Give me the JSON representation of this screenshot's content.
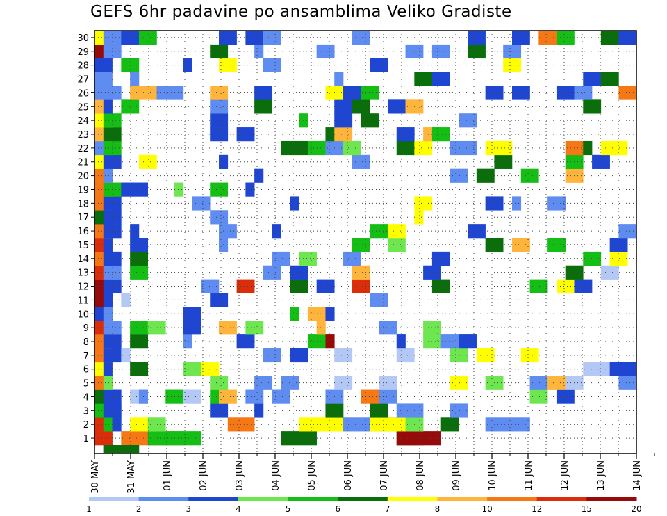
{
  "chart_data": {
    "type": "heatmap",
    "title": "GEFS 6hr padavine po ansamblima Veliko Gradiste",
    "xlabel": "",
    "ylabel": "",
    "x_tick_labels": [
      "30 MAY",
      "31 MAY",
      "01 JUN",
      "02 JUN",
      "03 JUN",
      "04 JUN",
      "05 JUN",
      "06 JUN",
      "07 JUN",
      "08 JUN",
      "09 JUN",
      "10 JUN",
      "11 JUN",
      "12 JUN",
      "13 JUN",
      "14 JUN"
    ],
    "y_tick_labels": [
      "1",
      "2",
      "3",
      "4",
      "5",
      "6",
      "7",
      "8",
      "9",
      "10",
      "11",
      "12",
      "13",
      "14",
      "15",
      "16",
      "17",
      "18",
      "19",
      "20",
      "21",
      "22",
      "23",
      "24",
      "25",
      "26",
      "27",
      "28",
      "29",
      "30"
    ],
    "members": 30,
    "time_steps": 61,
    "time_step_hours": 6,
    "grid": true,
    "colorbar": {
      "position": "bottom",
      "labels": [
        "1",
        "2",
        "3",
        "4",
        "5",
        "6",
        "7",
        "8",
        "10",
        "12",
        "15",
        "20"
      ],
      "colors": [
        "#b4c8f5",
        "#5f8cf0",
        "#1e46d2",
        "#6ee650",
        "#14be14",
        "#0a6e0a",
        "#ffff00",
        "#ffb43c",
        "#f57814",
        "#dc2d0a",
        "#960a0a"
      ]
    },
    "cells": [
      [
        1,
        0,
        2,
        10
      ],
      [
        1,
        3,
        7,
        9
      ],
      [
        1,
        6,
        6,
        5
      ],
      [
        1,
        21,
        1,
        7
      ],
      [
        1,
        21,
        4,
        6
      ],
      [
        1,
        34,
        3,
        6
      ],
      [
        1,
        34,
        5,
        11
      ],
      [
        2,
        0,
        2,
        10
      ],
      [
        2,
        1,
        1,
        5
      ],
      [
        2,
        2,
        1,
        3
      ],
      [
        2,
        4,
        3,
        7
      ],
      [
        2,
        6,
        2,
        4
      ],
      [
        2,
        15,
        3,
        9
      ],
      [
        2,
        23,
        6,
        7
      ],
      [
        2,
        28,
        6,
        2
      ],
      [
        2,
        31,
        6,
        7
      ],
      [
        2,
        35,
        2,
        4
      ],
      [
        2,
        39,
        2,
        6
      ],
      [
        2,
        44,
        5,
        2
      ],
      [
        3,
        0,
        3,
        5
      ],
      [
        3,
        1,
        2,
        3
      ],
      [
        3,
        13,
        2,
        3
      ],
      [
        3,
        18,
        1,
        3
      ],
      [
        3,
        26,
        2,
        6
      ],
      [
        3,
        31,
        2,
        6
      ],
      [
        3,
        34,
        3,
        2
      ],
      [
        3,
        40,
        2,
        2
      ],
      [
        4,
        0,
        2,
        6
      ],
      [
        4,
        1,
        2,
        3
      ],
      [
        4,
        4,
        2,
        1
      ],
      [
        4,
        5,
        1,
        2
      ],
      [
        4,
        8,
        2,
        5
      ],
      [
        4,
        10,
        2,
        1
      ],
      [
        4,
        13,
        2,
        5
      ],
      [
        4,
        14,
        2,
        8
      ],
      [
        4,
        17,
        2,
        2
      ],
      [
        4,
        20,
        2,
        2
      ],
      [
        4,
        26,
        2,
        2
      ],
      [
        4,
        30,
        2,
        9
      ],
      [
        4,
        32,
        2,
        2
      ],
      [
        4,
        49,
        2,
        4
      ],
      [
        4,
        52,
        2,
        3
      ],
      [
        5,
        0,
        2,
        9
      ],
      [
        5,
        1,
        1,
        4
      ],
      [
        5,
        13,
        2,
        4
      ],
      [
        5,
        18,
        2,
        2
      ],
      [
        5,
        21,
        2,
        2
      ],
      [
        5,
        27,
        2,
        1
      ],
      [
        5,
        32,
        2,
        1
      ],
      [
        5,
        40,
        2,
        7
      ],
      [
        5,
        44,
        2,
        4
      ],
      [
        5,
        49,
        2,
        2
      ],
      [
        5,
        51,
        2,
        8
      ],
      [
        5,
        53,
        2,
        1
      ],
      [
        5,
        59,
        2,
        2
      ],
      [
        6,
        0,
        2,
        7
      ],
      [
        6,
        1,
        1,
        3
      ],
      [
        6,
        4,
        2,
        6
      ],
      [
        6,
        10,
        2,
        4
      ],
      [
        6,
        12,
        2,
        7
      ],
      [
        6,
        55,
        3,
        1
      ],
      [
        6,
        58,
        3,
        3
      ],
      [
        7,
        0,
        2,
        9
      ],
      [
        7,
        1,
        2,
        3
      ],
      [
        7,
        3,
        1,
        1
      ],
      [
        7,
        19,
        2,
        2
      ],
      [
        7,
        22,
        2,
        3
      ],
      [
        7,
        27,
        2,
        1
      ],
      [
        7,
        34,
        2,
        1
      ],
      [
        7,
        40,
        2,
        4
      ],
      [
        7,
        43,
        2,
        7
      ],
      [
        7,
        48,
        2,
        7
      ],
      [
        8,
        0,
        2,
        9
      ],
      [
        8,
        1,
        2,
        3
      ],
      [
        8,
        4,
        2,
        6
      ],
      [
        8,
        10,
        1,
        2
      ],
      [
        8,
        16,
        2,
        3
      ],
      [
        8,
        24,
        2,
        5
      ],
      [
        8,
        26,
        1,
        11
      ],
      [
        8,
        34,
        1,
        3
      ],
      [
        8,
        37,
        2,
        4
      ],
      [
        8,
        39,
        2,
        2
      ],
      [
        8,
        41,
        2,
        3
      ],
      [
        9,
        0,
        2,
        10
      ],
      [
        9,
        1,
        2,
        2
      ],
      [
        9,
        4,
        2,
        5
      ],
      [
        9,
        6,
        2,
        4
      ],
      [
        9,
        10,
        2,
        3
      ],
      [
        9,
        14,
        2,
        8
      ],
      [
        9,
        17,
        2,
        4
      ],
      [
        9,
        25,
        1,
        8
      ],
      [
        9,
        32,
        2,
        2
      ],
      [
        9,
        37,
        2,
        4
      ],
      [
        10,
        0,
        2,
        3
      ],
      [
        10,
        1,
        1,
        2
      ],
      [
        10,
        10,
        2,
        3
      ],
      [
        10,
        22,
        1,
        5
      ],
      [
        10,
        24,
        2,
        8
      ],
      [
        10,
        26,
        1,
        3
      ],
      [
        11,
        0,
        2,
        11
      ],
      [
        11,
        1,
        1,
        3
      ],
      [
        11,
        3,
        1,
        1
      ],
      [
        11,
        13,
        2,
        3
      ],
      [
        11,
        31,
        2,
        2
      ],
      [
        12,
        0,
        2,
        11
      ],
      [
        12,
        1,
        2,
        3
      ],
      [
        12,
        12,
        2,
        2
      ],
      [
        12,
        16,
        2,
        10
      ],
      [
        12,
        22,
        2,
        6
      ],
      [
        12,
        25,
        2,
        3
      ],
      [
        12,
        29,
        2,
        10
      ],
      [
        12,
        38,
        2,
        6
      ],
      [
        12,
        49,
        2,
        5
      ],
      [
        12,
        52,
        2,
        7
      ],
      [
        12,
        54,
        2,
        3
      ],
      [
        13,
        0,
        2,
        10
      ],
      [
        13,
        1,
        2,
        2
      ],
      [
        13,
        4,
        2,
        5
      ],
      [
        13,
        19,
        2,
        2
      ],
      [
        13,
        22,
        2,
        3
      ],
      [
        13,
        29,
        2,
        8
      ],
      [
        13,
        37,
        2,
        3
      ],
      [
        13,
        53,
        2,
        6
      ],
      [
        13,
        57,
        2,
        1
      ],
      [
        14,
        0,
        2,
        9
      ],
      [
        14,
        1,
        2,
        3
      ],
      [
        14,
        4,
        2,
        6
      ],
      [
        14,
        20,
        2,
        2
      ],
      [
        14,
        23,
        2,
        4
      ],
      [
        14,
        28,
        2,
        2
      ],
      [
        14,
        38,
        2,
        3
      ],
      [
        14,
        55,
        2,
        5
      ],
      [
        14,
        58,
        2,
        7
      ],
      [
        15,
        0,
        2,
        10
      ],
      [
        15,
        1,
        1,
        3
      ],
      [
        15,
        4,
        2,
        3
      ],
      [
        15,
        14,
        1,
        2
      ],
      [
        15,
        29,
        2,
        5
      ],
      [
        15,
        33,
        2,
        4
      ],
      [
        15,
        44,
        2,
        6
      ],
      [
        15,
        47,
        2,
        8
      ],
      [
        15,
        51,
        2,
        5
      ],
      [
        15,
        58,
        2,
        3
      ],
      [
        16,
        0,
        2,
        9
      ],
      [
        16,
        1,
        2,
        3
      ],
      [
        16,
        4,
        1,
        3
      ],
      [
        16,
        14,
        2,
        2
      ],
      [
        16,
        20,
        1,
        3
      ],
      [
        16,
        31,
        2,
        5
      ],
      [
        16,
        33,
        2,
        7
      ],
      [
        16,
        42,
        2,
        3
      ],
      [
        16,
        59,
        2,
        2
      ],
      [
        17,
        0,
        2,
        6
      ],
      [
        17,
        1,
        2,
        3
      ],
      [
        17,
        13,
        2,
        2
      ],
      [
        17,
        36,
        1,
        7
      ],
      [
        18,
        0,
        2,
        9
      ],
      [
        18,
        1,
        2,
        3
      ],
      [
        18,
        11,
        2,
        2
      ],
      [
        18,
        22,
        1,
        3
      ],
      [
        18,
        36,
        2,
        7
      ],
      [
        18,
        44,
        2,
        3
      ],
      [
        18,
        47,
        1,
        2
      ],
      [
        18,
        51,
        2,
        2
      ],
      [
        19,
        0,
        2,
        9
      ],
      [
        19,
        1,
        2,
        5
      ],
      [
        19,
        3,
        3,
        3
      ],
      [
        19,
        9,
        1,
        4
      ],
      [
        19,
        13,
        2,
        5
      ],
      [
        19,
        17,
        1,
        3
      ],
      [
        20,
        0,
        2,
        9
      ],
      [
        20,
        1,
        1,
        2
      ],
      [
        20,
        18,
        1,
        3
      ],
      [
        20,
        40,
        2,
        2
      ],
      [
        20,
        43,
        2,
        6
      ],
      [
        20,
        48,
        2,
        5
      ],
      [
        20,
        53,
        2,
        8
      ],
      [
        21,
        0,
        2,
        7
      ],
      [
        21,
        1,
        2,
        3
      ],
      [
        21,
        5,
        2,
        7
      ],
      [
        21,
        14,
        1,
        3
      ],
      [
        21,
        29,
        2,
        2
      ],
      [
        21,
        45,
        2,
        6
      ],
      [
        21,
        53,
        2,
        5
      ],
      [
        21,
        56,
        2,
        3
      ],
      [
        22,
        0,
        2,
        2
      ],
      [
        22,
        1,
        2,
        5
      ],
      [
        22,
        21,
        3,
        6
      ],
      [
        22,
        24,
        2,
        5
      ],
      [
        22,
        26,
        2,
        2
      ],
      [
        22,
        28,
        2,
        4
      ],
      [
        22,
        34,
        2,
        6
      ],
      [
        22,
        36,
        2,
        7
      ],
      [
        22,
        40,
        3,
        2
      ],
      [
        22,
        44,
        3,
        7
      ],
      [
        22,
        53,
        2,
        9
      ],
      [
        22,
        55,
        1,
        6
      ],
      [
        22,
        57,
        2,
        7
      ],
      [
        22,
        58,
        2,
        7
      ],
      [
        23,
        0,
        2,
        8
      ],
      [
        23,
        1,
        2,
        6
      ],
      [
        23,
        13,
        2,
        3
      ],
      [
        23,
        16,
        2,
        3
      ],
      [
        23,
        26,
        2,
        6
      ],
      [
        23,
        27,
        2,
        8
      ],
      [
        23,
        34,
        2,
        3
      ],
      [
        23,
        37,
        2,
        8
      ],
      [
        23,
        38,
        2,
        5
      ],
      [
        24,
        0,
        2,
        7
      ],
      [
        24,
        1,
        2,
        5
      ],
      [
        24,
        13,
        2,
        3
      ],
      [
        24,
        23,
        1,
        5
      ],
      [
        24,
        27,
        2,
        3
      ],
      [
        24,
        30,
        2,
        6
      ],
      [
        24,
        41,
        2,
        2
      ],
      [
        25,
        0,
        2,
        8
      ],
      [
        25,
        1,
        1,
        3
      ],
      [
        25,
        3,
        2,
        5
      ],
      [
        25,
        13,
        2,
        2
      ],
      [
        25,
        18,
        2,
        6
      ],
      [
        25,
        27,
        2,
        3
      ],
      [
        25,
        29,
        2,
        6
      ],
      [
        25,
        33,
        2,
        3
      ],
      [
        25,
        35,
        2,
        8
      ],
      [
        25,
        55,
        2,
        6
      ],
      [
        26,
        0,
        2,
        2
      ],
      [
        26,
        1,
        2,
        2
      ],
      [
        26,
        4,
        3,
        8
      ],
      [
        26,
        7,
        3,
        2
      ],
      [
        26,
        13,
        2,
        8
      ],
      [
        26,
        18,
        2,
        3
      ],
      [
        26,
        26,
        2,
        7
      ],
      [
        26,
        28,
        2,
        3
      ],
      [
        26,
        30,
        2,
        5
      ],
      [
        26,
        44,
        2,
        3
      ],
      [
        26,
        47,
        2,
        3
      ],
      [
        26,
        52,
        2,
        3
      ],
      [
        26,
        54,
        2,
        2
      ],
      [
        26,
        59,
        2,
        9
      ],
      [
        27,
        0,
        2,
        2
      ],
      [
        27,
        4,
        1,
        2
      ],
      [
        27,
        27,
        1,
        2
      ],
      [
        27,
        36,
        2,
        6
      ],
      [
        27,
        38,
        2,
        3
      ],
      [
        27,
        55,
        2,
        3
      ],
      [
        27,
        57,
        2,
        6
      ],
      [
        28,
        0,
        2,
        3
      ],
      [
        28,
        3,
        2,
        5
      ],
      [
        28,
        10,
        1,
        3
      ],
      [
        28,
        14,
        2,
        7
      ],
      [
        28,
        19,
        2,
        2
      ],
      [
        28,
        31,
        2,
        3
      ],
      [
        28,
        46,
        2,
        7
      ],
      [
        29,
        0,
        2,
        11
      ],
      [
        29,
        1,
        2,
        2
      ],
      [
        29,
        13,
        2,
        6
      ],
      [
        29,
        18,
        1,
        2
      ],
      [
        29,
        25,
        2,
        2
      ],
      [
        29,
        35,
        2,
        2
      ],
      [
        29,
        38,
        2,
        2
      ],
      [
        29,
        42,
        2,
        6
      ],
      [
        29,
        46,
        2,
        2
      ],
      [
        30,
        0,
        2,
        7
      ],
      [
        30,
        1,
        2,
        2
      ],
      [
        30,
        3,
        2,
        3
      ],
      [
        30,
        5,
        2,
        5
      ],
      [
        30,
        14,
        2,
        3
      ],
      [
        30,
        17,
        2,
        3
      ],
      [
        30,
        19,
        2,
        2
      ],
      [
        30,
        29,
        2,
        2
      ],
      [
        30,
        42,
        2,
        3
      ],
      [
        30,
        47,
        2,
        3
      ],
      [
        30,
        50,
        2,
        9
      ],
      [
        30,
        52,
        2,
        5
      ],
      [
        30,
        57,
        2,
        6
      ],
      [
        30,
        59,
        2,
        3
      ]
    ],
    "lead_cells": [
      [
        1,
        1,
        2
      ],
      [
        1,
        2,
        1
      ],
      [
        1,
        3,
        3
      ],
      [
        1,
        4,
        6
      ]
    ]
  }
}
